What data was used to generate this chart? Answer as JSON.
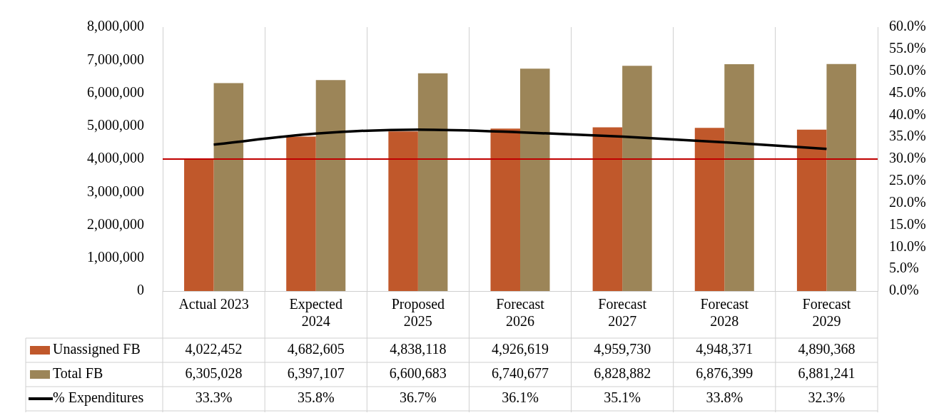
{
  "chart_data": {
    "type": "bar",
    "categories": [
      "Actual 2023",
      "Expected 2024",
      "Proposed 2025",
      "Forecast 2026",
      "Forecast 2027",
      "Forecast 2028",
      "Forecast 2029"
    ],
    "series": [
      {
        "name": "Unassigned FB",
        "color": "#c0582b",
        "values": [
          4022452,
          4682605,
          4838118,
          4926619,
          4959730,
          4948371,
          4890368
        ],
        "value_labels": [
          "4,022,452",
          "4,682,605",
          "4,838,118",
          "4,926,619",
          "4,959,730",
          "4,948,371",
          "4,890,368"
        ]
      },
      {
        "name": "Total FB",
        "color": "#9c8558",
        "values": [
          6305028,
          6397107,
          6600683,
          6740677,
          6828882,
          6876399,
          6881241
        ],
        "value_labels": [
          "6,305,028",
          "6,397,107",
          "6,600,683",
          "6,740,677",
          "6,828,882",
          "6,876,399",
          "6,881,241"
        ]
      },
      {
        "name": "% Expenditures",
        "type": "line",
        "axis": "y2",
        "color": "#000000",
        "marker": "none",
        "line_style": "solid",
        "values": [
          33.3,
          35.8,
          36.7,
          36.1,
          35.1,
          33.8,
          32.3
        ],
        "value_labels": [
          "33.3%",
          "35.8%",
          "36.7%",
          "36.1%",
          "35.1%",
          "33.8%",
          "32.3%"
        ]
      }
    ],
    "ylim": [
      0,
      8000000
    ],
    "yticks": [
      {
        "value": 0,
        "label": "0"
      },
      {
        "value": 1000000,
        "label": "1,000,000"
      },
      {
        "value": 2000000,
        "label": "2,000,000"
      },
      {
        "value": 3000000,
        "label": "3,000,000"
      },
      {
        "value": 4000000,
        "label": "4,000,000"
      },
      {
        "value": 5000000,
        "label": "5,000,000"
      },
      {
        "value": 6000000,
        "label": "6,000,000"
      },
      {
        "value": 7000000,
        "label": "7,000,000"
      },
      {
        "value": 8000000,
        "label": "8,000,000"
      }
    ],
    "y2lim": [
      0,
      60
    ],
    "y2ticks": [
      {
        "value": 0,
        "label": "0.0%"
      },
      {
        "value": 5,
        "label": "5.0%"
      },
      {
        "value": 10,
        "label": "10.0%"
      },
      {
        "value": 15,
        "label": "15.0%"
      },
      {
        "value": 20,
        "label": "20.0%"
      },
      {
        "value": 25,
        "label": "25.0%"
      },
      {
        "value": 30,
        "label": "30.0%"
      },
      {
        "value": 35,
        "label": "35.0%"
      },
      {
        "value": 40,
        "label": "40.0%"
      },
      {
        "value": 45,
        "label": "45.0%"
      },
      {
        "value": 50,
        "label": "50.0%"
      },
      {
        "value": 55,
        "label": "55.0%"
      },
      {
        "value": 60,
        "label": "60.0%"
      }
    ],
    "ref_lines": [
      {
        "axis": "y2",
        "value": 30,
        "color": "#c00000",
        "line_style": "solid"
      }
    ],
    "grid": "x",
    "legend": "bottom"
  }
}
